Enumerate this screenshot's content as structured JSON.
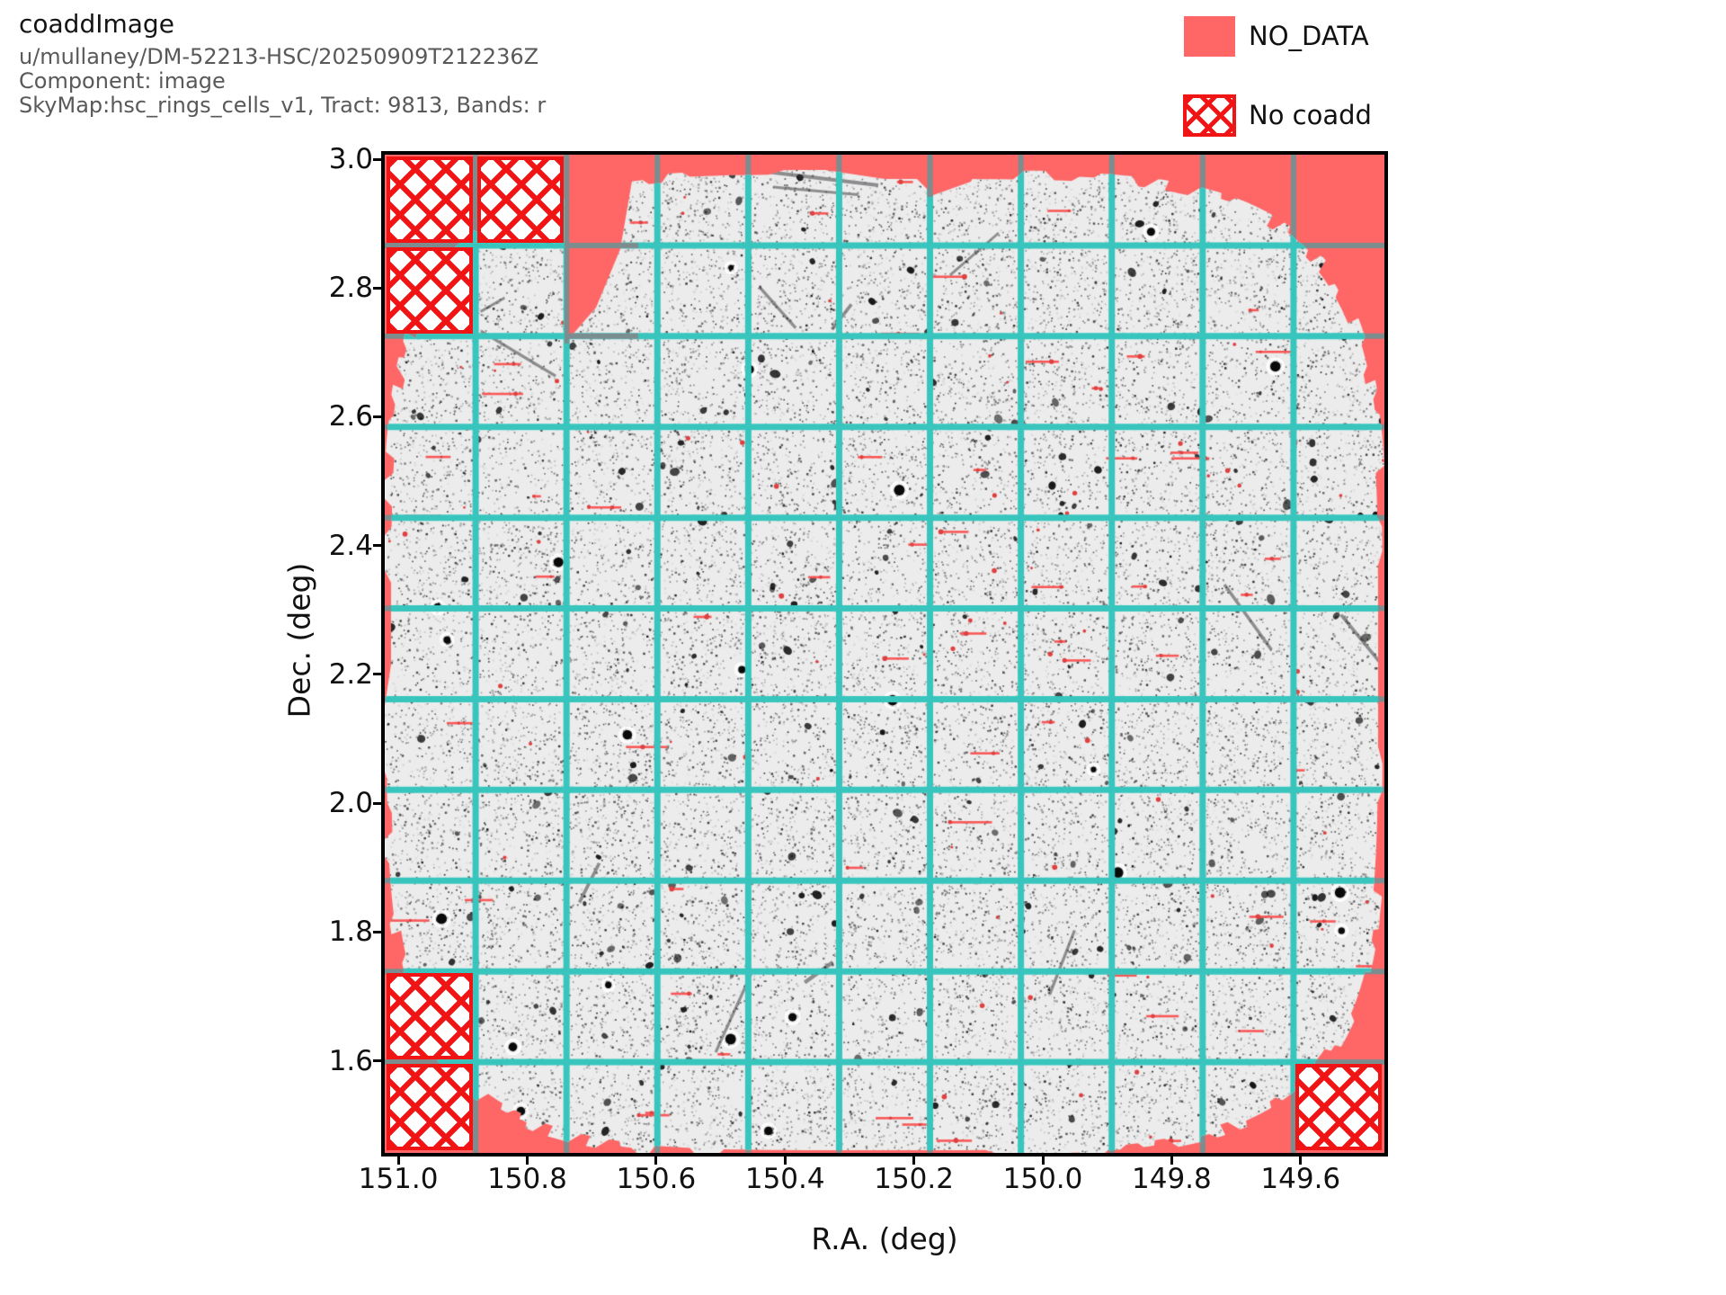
{
  "header": {
    "title": "coaddImage",
    "collection": "u/mullaney/DM-52213-HSC/20250909T212236Z",
    "component": "Component: image",
    "skymap": "SkyMap:hsc_rings_cells_v1, Tract: 9813, Bands: r"
  },
  "legend": {
    "items": [
      {
        "label": "NO_DATA",
        "swatch": "solid",
        "color": "#ff6666"
      },
      {
        "label": "No coadd",
        "swatch": "crosshatch",
        "color": "#f01414"
      }
    ]
  },
  "chart_data": {
    "type": "heatmap",
    "subtype": "sky-coadd-image",
    "title": "coaddImage",
    "xlabel": "R.A. (deg)",
    "ylabel": "Dec. (deg)",
    "x_tick_labels": [
      "151.0",
      "150.8",
      "150.6",
      "150.4",
      "150.2",
      "150.0",
      "149.8",
      "149.6"
    ],
    "x_tick_values": [
      151.0,
      150.8,
      150.6,
      150.4,
      150.2,
      150.0,
      149.8,
      149.6
    ],
    "y_tick_labels": [
      "3.0",
      "2.8",
      "2.6",
      "2.4",
      "2.2",
      "2.0",
      "1.8",
      "1.6"
    ],
    "y_tick_values": [
      3.0,
      2.8,
      2.6,
      2.4,
      2.2,
      2.0,
      1.8,
      1.6
    ],
    "x_range": [
      151.021,
      149.47
    ],
    "y_range": [
      1.457,
      3.007
    ],
    "x_axis_inverted": true,
    "grid": true,
    "legend_position": "top-right",
    "patch_grid": {
      "cols": 11,
      "rows": 11
    },
    "no_coadd_patches": [
      [
        0,
        0
      ],
      [
        1,
        0
      ],
      [
        0,
        1
      ],
      [
        0,
        9
      ],
      [
        0,
        10
      ],
      [
        10,
        10
      ]
    ],
    "colors": {
      "no_data": "#ff6666",
      "no_coadd_hatch": "#f01414",
      "grid_on_image": "#38c5be",
      "grid_on_nodata": "#7b8d8f",
      "image_background": "#ececec",
      "artifact_red": "#e04040",
      "spine": "#000000"
    },
    "description": "Grayscale r-band coadd mosaic with a roughly circular footprint. NO_DATA regions are salmon red; patch boundaries are drawn as a turquoise grid over the image and a gray grid over NO_DATA; corner patches with no coadd are red crosshatch."
  }
}
